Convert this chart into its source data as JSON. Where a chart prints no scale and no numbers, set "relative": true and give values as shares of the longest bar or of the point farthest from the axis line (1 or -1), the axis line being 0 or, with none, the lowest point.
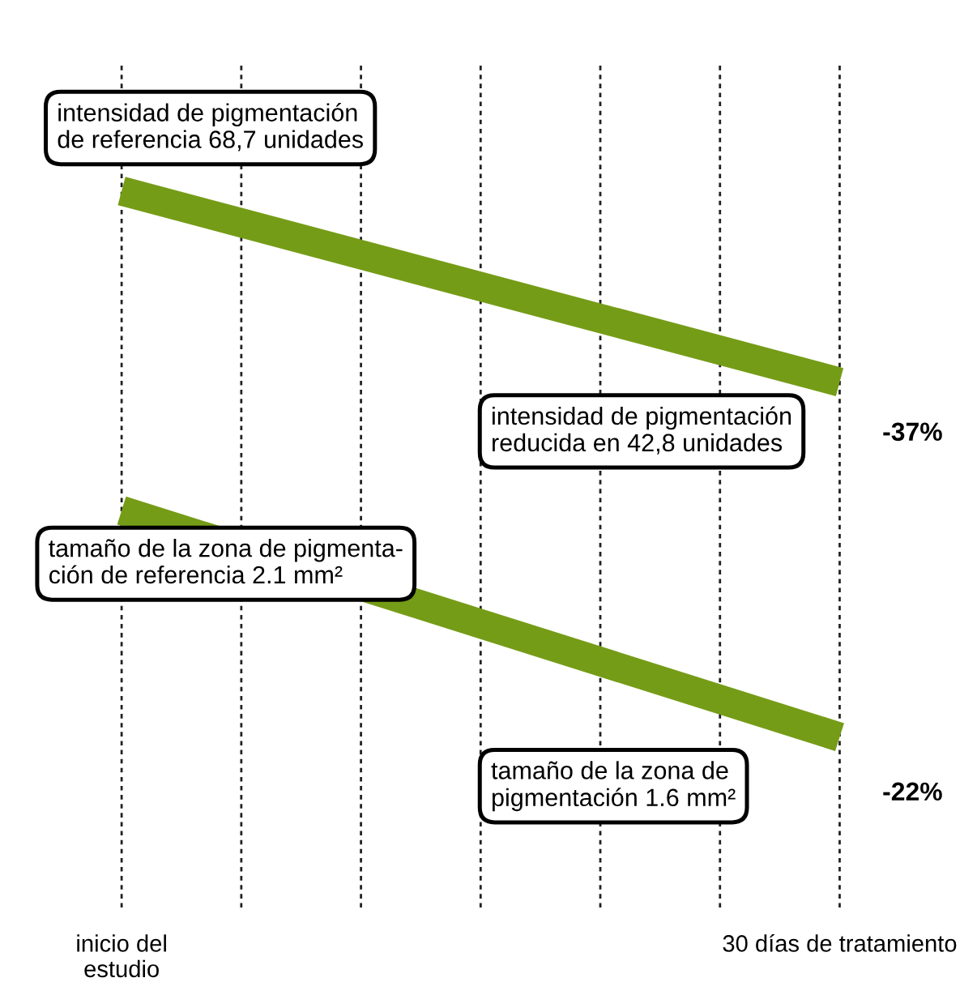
{
  "chart_data": {
    "type": "line",
    "relative": true,
    "categories": [
      "inicio del\nestudio",
      null,
      null,
      null,
      null,
      null,
      "30 días de tratamiento"
    ],
    "grid": "x",
    "line_style": "solid",
    "marker": "none",
    "tick_labels": "x",
    "series": [
      {
        "color": "#759c17",
        "values": [
          1,
          null,
          null,
          null,
          null,
          null,
          0.65
        ]
      },
      {
        "color": "#759c17",
        "values": [
          0.415,
          null,
          null,
          null,
          null,
          null,
          0
        ]
      }
    ],
    "annotations": [
      "intensidad de pigmentación\nde referencia 68,7 unidades",
      "intensidad de pigmentación\nreducida en 42,8 unidades",
      "-37%",
      "tamaño de la zona de pigmenta-\nción de referencia 2.1 mm²",
      "tamaño de la zona de\npigmentación 1.6 mm²",
      "-22%"
    ]
  }
}
